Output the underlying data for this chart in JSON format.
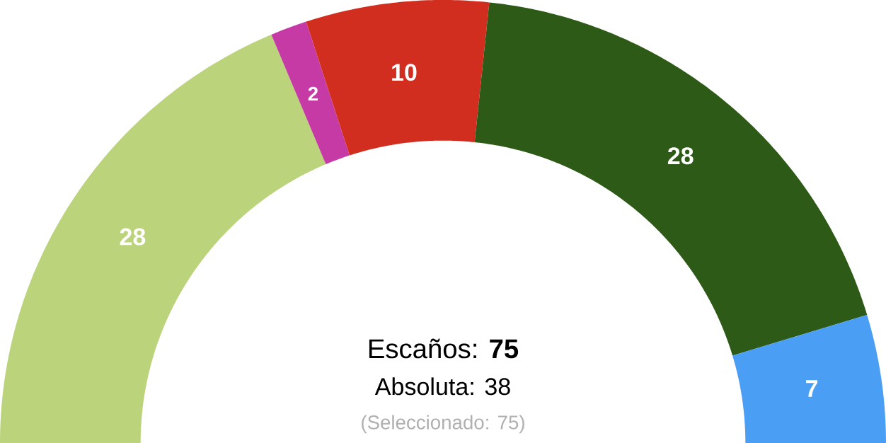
{
  "chart_data": {
    "type": "donut",
    "categories": [
      null,
      null,
      null,
      null,
      null
    ],
    "values": [
      28,
      2,
      10,
      28,
      7
    ],
    "colors": [
      "#bbd37a",
      "#c63aa6",
      "#d22e20",
      "#2e5a18",
      "#4a9ff5"
    ],
    "data_labels": true,
    "annotations": [
      "Escaños: **75**",
      "Absoluta: 38",
      "(Seleccionado: 75)"
    ]
  }
}
